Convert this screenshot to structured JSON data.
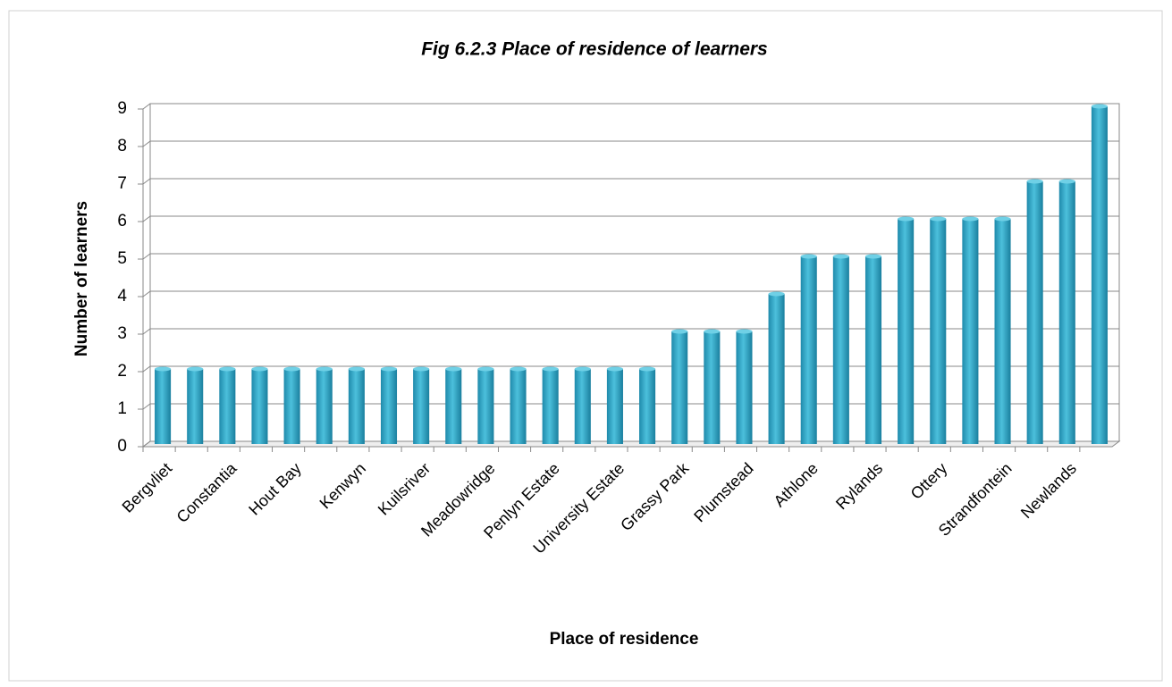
{
  "chart_data": {
    "type": "bar",
    "title": "Fig 6.2.3 Place of residence of learners",
    "x_label": "Place of residence",
    "y_label": "Number of learners",
    "categories": [
      "Bergvliet",
      null,
      "Constantia",
      null,
      "Hout Bay",
      null,
      "Kenwyn",
      null,
      "Kuilsriver",
      null,
      "Meadowridge",
      null,
      "Penlyn Estate",
      null,
      "University Estate",
      null,
      "Grassy Park",
      null,
      "Plumstead",
      null,
      "Athlone",
      null,
      "Rylands",
      null,
      "Ottery",
      null,
      "Strandfontein",
      null,
      "Newlands",
      null
    ],
    "values": [
      2,
      2,
      2,
      2,
      2,
      2,
      2,
      2,
      2,
      2,
      2,
      2,
      2,
      2,
      2,
      2,
      3,
      3,
      3,
      4,
      5,
      5,
      5,
      6,
      6,
      6,
      6,
      7,
      7,
      9
    ],
    "color": "#2ea3c4",
    "ylim": [
      0,
      9
    ],
    "yticks": [
      0,
      1,
      2,
      3,
      4,
      5,
      6,
      7,
      8,
      9
    ],
    "grid": true
  }
}
